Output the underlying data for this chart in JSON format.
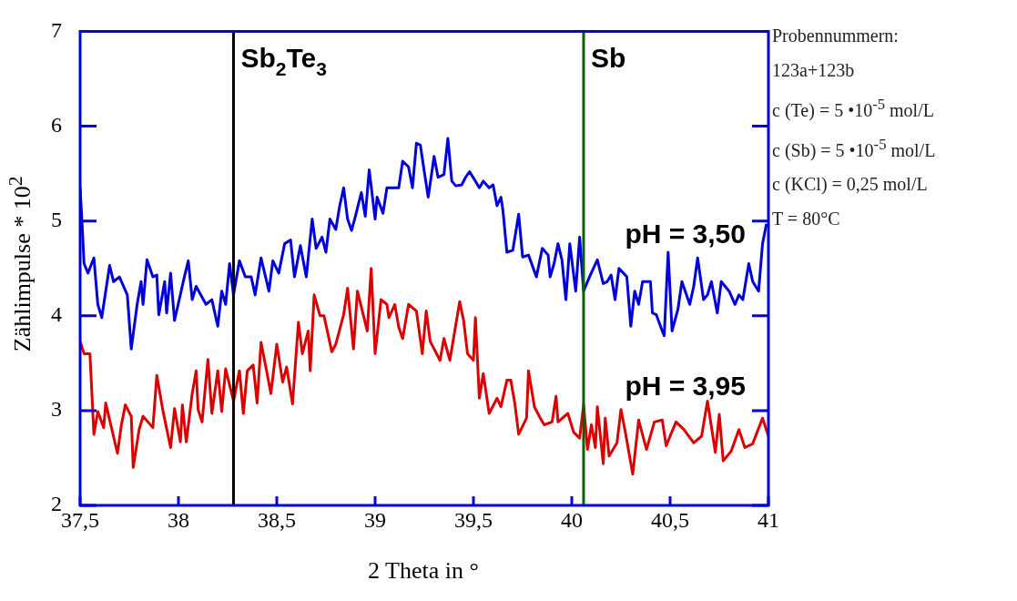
{
  "chart_data": {
    "type": "line",
    "xlabel": "2 Theta in °",
    "ylabel": "Zählimpulse * 10$^{2}$",
    "xlim": [
      37.5,
      41
    ],
    "xticks": [
      {
        "value": 37.5,
        "label": "37,5"
      },
      38,
      {
        "value": 38.5,
        "label": "38,5"
      },
      39,
      {
        "value": 39.5,
        "label": "39,5"
      },
      40,
      {
        "value": 40.5,
        "label": "40,5"
      },
      41
    ],
    "ylim": [
      2,
      7
    ],
    "yticks": [
      2,
      3,
      4,
      5,
      6,
      7
    ],
    "grid": false,
    "legend": "right",
    "marker": "none",
    "line_style": "solid",
    "series": [
      {
        "name": "pH = 3,50",
        "color": "#0000dd",
        "x": [
          37.5,
          37.51,
          37.52,
          37.54,
          37.57,
          37.59,
          37.61,
          37.65,
          37.67,
          37.7,
          37.74,
          37.76,
          37.79,
          37.81,
          37.82,
          37.84,
          37.87,
          37.89,
          37.9,
          37.93,
          37.94,
          37.96,
          37.98,
          38.03,
          38.05,
          38.07,
          38.09,
          38.14,
          38.17,
          38.2,
          38.22,
          38.24,
          38.26,
          38.28,
          38.31,
          38.34,
          38.37,
          38.39,
          38.42,
          38.46,
          38.48,
          38.51,
          38.54,
          38.57,
          38.59,
          38.62,
          38.65,
          38.68,
          38.7,
          38.73,
          38.75,
          38.77,
          38.8,
          38.82,
          38.84,
          38.86,
          38.88,
          38.9,
          38.93,
          38.95,
          38.97,
          39.0,
          39.01,
          39.04,
          39.06,
          39.1,
          39.12,
          39.14,
          39.17,
          39.19,
          39.21,
          39.23,
          39.25,
          39.27,
          39.3,
          39.32,
          39.35,
          39.37,
          39.39,
          39.41,
          39.44,
          39.46,
          39.48,
          39.51,
          39.53,
          39.55,
          39.58,
          39.6,
          39.62,
          39.64,
          39.65,
          39.67,
          39.7,
          39.73,
          39.75,
          39.78,
          39.82,
          39.85,
          39.88,
          39.89,
          39.91,
          39.93,
          39.95,
          39.97,
          39.99,
          40.02,
          40.04,
          40.06,
          40.09,
          40.13,
          40.16,
          40.18,
          40.2,
          40.22,
          40.24,
          40.28,
          40.3,
          40.32,
          40.34,
          40.36,
          40.4,
          40.41,
          40.43,
          40.46,
          40.47,
          40.49,
          40.51,
          40.54,
          40.56,
          40.6,
          40.62,
          40.64,
          40.67,
          40.69,
          40.71,
          40.74,
          40.76,
          40.78,
          40.8,
          40.83,
          40.85,
          40.87,
          40.9,
          40.92,
          40.95,
          40.97,
          40.99
        ],
        "values": [
          5.35,
          4.97,
          4.55,
          4.45,
          4.61,
          4.12,
          3.98,
          4.53,
          4.36,
          4.41,
          4.22,
          3.65,
          4.12,
          4.36,
          4.12,
          4.59,
          4.41,
          4.43,
          4.01,
          4.36,
          4.03,
          4.45,
          3.95,
          4.41,
          4.58,
          4.17,
          4.31,
          4.12,
          4.17,
          3.89,
          4.26,
          4.12,
          4.55,
          4.22,
          4.58,
          4.41,
          4.41,
          4.22,
          4.61,
          4.26,
          4.58,
          4.45,
          4.76,
          4.8,
          4.41,
          4.74,
          4.41,
          5.02,
          4.71,
          4.83,
          4.67,
          5.02,
          4.91,
          5.16,
          5.35,
          5.02,
          4.9,
          5.05,
          5.3,
          5.05,
          5.54,
          5.02,
          5.25,
          5.08,
          5.35,
          5.35,
          5.35,
          5.63,
          5.57,
          5.35,
          5.82,
          5.8,
          5.52,
          5.25,
          5.68,
          5.46,
          5.49,
          5.87,
          5.42,
          5.37,
          5.38,
          5.46,
          5.52,
          5.42,
          5.35,
          5.42,
          5.35,
          5.38,
          5.16,
          5.25,
          5.11,
          4.67,
          4.69,
          5.07,
          4.62,
          4.64,
          4.41,
          4.71,
          4.64,
          4.41,
          4.55,
          4.76,
          4.59,
          4.17,
          4.76,
          4.26,
          4.83,
          4.26,
          4.41,
          4.59,
          4.34,
          4.36,
          4.43,
          4.17,
          4.5,
          4.41,
          3.89,
          4.26,
          4.12,
          4.36,
          4.36,
          4.03,
          4.01,
          3.84,
          3.79,
          4.67,
          3.84,
          4.07,
          4.36,
          4.12,
          4.31,
          4.61,
          4.17,
          4.22,
          4.36,
          4.03,
          4.36,
          4.31,
          4.26,
          4.12,
          4.22,
          4.17,
          4.55,
          4.36,
          4.26,
          4.76,
          4.97
        ]
      },
      {
        "name": "pH = 3,95",
        "color": "#dd0000",
        "x": [
          37.5,
          37.52,
          37.55,
          37.57,
          37.59,
          37.62,
          37.63,
          37.69,
          37.71,
          37.73,
          37.76,
          37.77,
          37.8,
          37.82,
          37.87,
          37.89,
          37.92,
          37.96,
          37.98,
          38.01,
          38.02,
          38.04,
          38.07,
          38.09,
          38.1,
          38.12,
          38.15,
          38.17,
          38.2,
          38.22,
          38.24,
          38.28,
          38.31,
          38.33,
          38.35,
          38.38,
          38.4,
          38.42,
          38.45,
          38.47,
          38.5,
          38.53,
          38.55,
          38.58,
          38.61,
          38.63,
          38.66,
          38.67,
          38.69,
          38.72,
          38.74,
          38.78,
          38.8,
          38.84,
          38.86,
          38.89,
          38.91,
          38.96,
          38.98,
          39.0,
          39.03,
          39.06,
          39.07,
          39.1,
          39.12,
          39.14,
          39.17,
          39.21,
          39.24,
          39.26,
          39.28,
          39.33,
          39.35,
          39.38,
          39.43,
          39.45,
          39.47,
          39.5,
          39.51,
          39.53,
          39.55,
          39.58,
          39.62,
          39.64,
          39.67,
          39.69,
          39.71,
          39.73,
          39.77,
          39.78,
          39.81,
          39.84,
          39.86,
          39.9,
          39.92,
          39.93,
          39.98,
          40.01,
          40.04,
          40.06,
          40.08,
          40.1,
          40.12,
          40.13,
          40.16,
          40.17,
          40.19,
          40.23,
          40.25,
          40.27,
          40.31,
          40.34,
          40.38,
          40.42,
          40.46,
          40.48,
          40.53,
          40.57,
          40.62,
          40.66,
          40.69,
          40.73,
          40.75,
          40.77,
          40.81,
          40.85,
          40.88,
          40.92,
          40.97,
          41.0
        ],
        "values": [
          3.73,
          3.6,
          3.6,
          2.75,
          2.99,
          2.82,
          3.08,
          2.55,
          2.85,
          3.06,
          2.94,
          2.4,
          2.8,
          2.94,
          2.82,
          3.37,
          3.01,
          2.61,
          3.02,
          2.67,
          3.06,
          2.67,
          3.18,
          3.42,
          3.01,
          2.88,
          3.54,
          2.97,
          3.42,
          2.99,
          3.44,
          3.1,
          3.42,
          2.97,
          3.42,
          3.48,
          3.08,
          3.72,
          3.4,
          3.18,
          3.7,
          3.3,
          3.46,
          3.07,
          3.93,
          3.6,
          3.84,
          3.42,
          4.22,
          4.0,
          4.0,
          3.62,
          3.7,
          4.01,
          4.29,
          3.65,
          4.26,
          3.84,
          4.5,
          3.6,
          4.17,
          4.12,
          3.98,
          4.12,
          3.88,
          3.76,
          4.12,
          4.05,
          3.6,
          4.05,
          3.73,
          3.53,
          3.76,
          3.53,
          4.15,
          3.95,
          3.6,
          3.53,
          3.98,
          3.13,
          3.39,
          2.97,
          3.13,
          3.04,
          3.32,
          3.32,
          3.08,
          2.75,
          2.92,
          3.42,
          3.04,
          2.92,
          2.85,
          2.88,
          3.15,
          2.88,
          2.97,
          2.77,
          2.71,
          3.06,
          2.59,
          2.85,
          2.61,
          3.04,
          2.44,
          2.92,
          2.52,
          2.66,
          3.01,
          2.8,
          2.33,
          2.9,
          2.59,
          2.88,
          2.9,
          2.63,
          2.88,
          2.8,
          2.66,
          2.73,
          3.1,
          2.56,
          2.96,
          2.47,
          2.57,
          2.8,
          2.61,
          2.65,
          2.92,
          2.73
        ]
      }
    ],
    "ref_lines": [
      {
        "axis": "x",
        "value": 38.28,
        "label": "Sb$_{2}$Te$_{3}$",
        "color": "#000000"
      },
      {
        "axis": "x",
        "value": 40.06,
        "label": "Sb",
        "color": "#006400"
      }
    ],
    "annotations": [
      "Probennummern:",
      "123a+123b",
      "c (Te) = 5 •10$^{-5}$ mol/L",
      "c (Sb) = 5 •10$^{-5}$ mol/L",
      "c (KCl) = 0,25 mol/L",
      "T  = 80°C"
    ]
  }
}
